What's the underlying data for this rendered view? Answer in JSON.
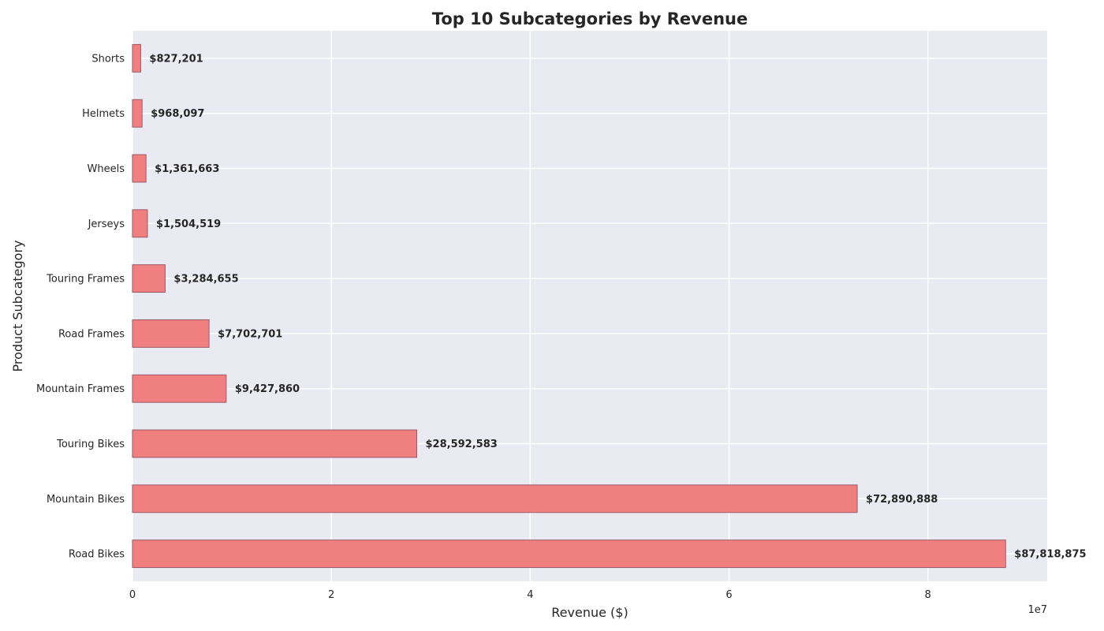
{
  "chart_data": {
    "type": "bar",
    "orientation": "horizontal",
    "title": "Top 10 Subcategories by Revenue",
    "xlabel": "Revenue ($)",
    "ylabel": "Product Subcategory",
    "x_scale_label": "1e7",
    "xlim": [
      0,
      92000000
    ],
    "x_ticks": [
      0,
      20000000,
      40000000,
      60000000,
      80000000
    ],
    "x_tick_labels": [
      "0",
      "2",
      "4",
      "6",
      "8"
    ],
    "grid": true,
    "bar_color": "#f08080",
    "bar_edge_color": "#9a5a6a",
    "plot_background": "#eaeaf2",
    "categories": [
      "Road Bikes",
      "Mountain Bikes",
      "Touring Bikes",
      "Mountain Frames",
      "Road Frames",
      "Touring Frames",
      "Jerseys",
      "Wheels",
      "Helmets",
      "Shorts"
    ],
    "values": [
      87818875,
      72890888,
      28592583,
      9427860,
      7702701,
      3284655,
      1504519,
      1361663,
      968097,
      827201
    ],
    "value_labels": [
      "$87,818,875",
      "$72,890,888",
      "$28,592,583",
      "$9,427,860",
      "$7,702,701",
      "$3,284,655",
      "$1,504,519",
      "$1,361,663",
      "$968,097",
      "$827,201"
    ]
  }
}
